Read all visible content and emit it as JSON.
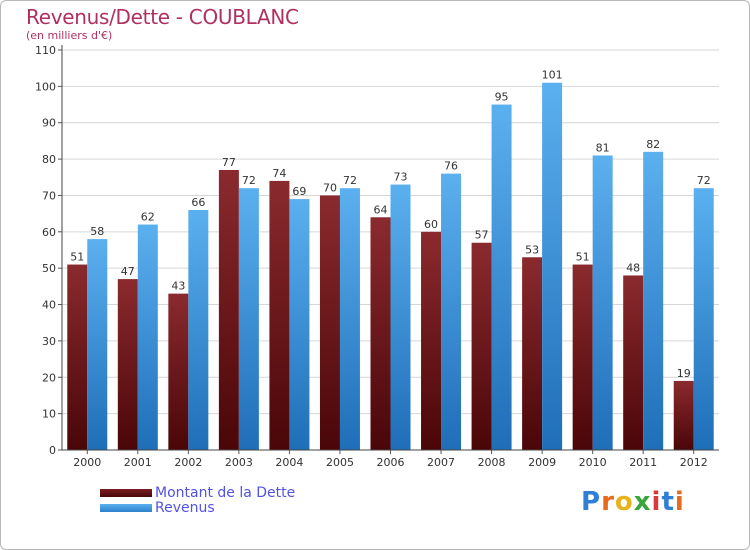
{
  "chart_data": {
    "type": "bar",
    "title": "Revenus/Dette - COUBLANC",
    "subtitle": "(en milliers d'€)",
    "categories": [
      "2000",
      "2001",
      "2002",
      "2003",
      "2004",
      "2005",
      "2006",
      "2007",
      "2008",
      "2009",
      "2010",
      "2011",
      "2012"
    ],
    "series": [
      {
        "name": "Montant de la Dette",
        "color": "#6b1519",
        "values": [
          51,
          47,
          43,
          77,
          74,
          70,
          64,
          60,
          57,
          53,
          51,
          48,
          19
        ]
      },
      {
        "name": "Revenus",
        "color": "#3b97e0",
        "values": [
          58,
          62,
          66,
          72,
          69,
          72,
          73,
          76,
          95,
          101,
          81,
          82,
          72
        ]
      }
    ],
    "ylim": [
      0,
      110
    ],
    "yticks": [
      0,
      10,
      20,
      30,
      40,
      50,
      60,
      70,
      80,
      90,
      100,
      110
    ],
    "grid": true,
    "legend_position": "bottom-left",
    "xlabel": "",
    "ylabel": ""
  },
  "logo": {
    "text": "Proxiti",
    "letters": [
      "P",
      "r",
      "o",
      "x",
      "i",
      "t",
      "i"
    ],
    "colors": [
      "#2f7fd6",
      "#e86a1a",
      "#e8b21a",
      "#3aa53a",
      "#d63a3a",
      "#2f7fd6",
      "#e86a1a"
    ]
  }
}
